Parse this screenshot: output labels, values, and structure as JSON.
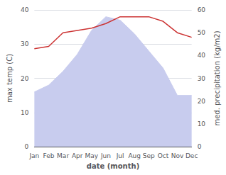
{
  "chart_data": {
    "type": "line",
    "xlabel": "date (month)",
    "ylabel": "max temp (C)",
    "y2label": "med. precipitation (kg/m2)",
    "categories": [
      "Jan",
      "Feb",
      "Mar",
      "Apr",
      "May",
      "Jun",
      "Jul",
      "Aug",
      "Sep",
      "Oct",
      "Nov",
      "Dec"
    ],
    "series": [
      {
        "type": "area",
        "color": "#c8ccee",
        "values": [
          16,
          18,
          22,
          27,
          34,
          38,
          37,
          33,
          28,
          23,
          15,
          15
        ]
      },
      {
        "type": "line",
        "color": "#cc3333",
        "axis": "y2",
        "values": [
          43,
          44,
          50,
          51,
          52,
          54,
          57,
          57,
          57,
          55,
          50,
          48
        ]
      }
    ],
    "ylim": [
      0,
      40
    ],
    "yticks": [
      0,
      10,
      20,
      30,
      40
    ],
    "y2lim": [
      0,
      60
    ],
    "y2ticks": [
      0,
      10,
      20,
      30,
      40,
      50,
      60
    ],
    "grid": true
  }
}
